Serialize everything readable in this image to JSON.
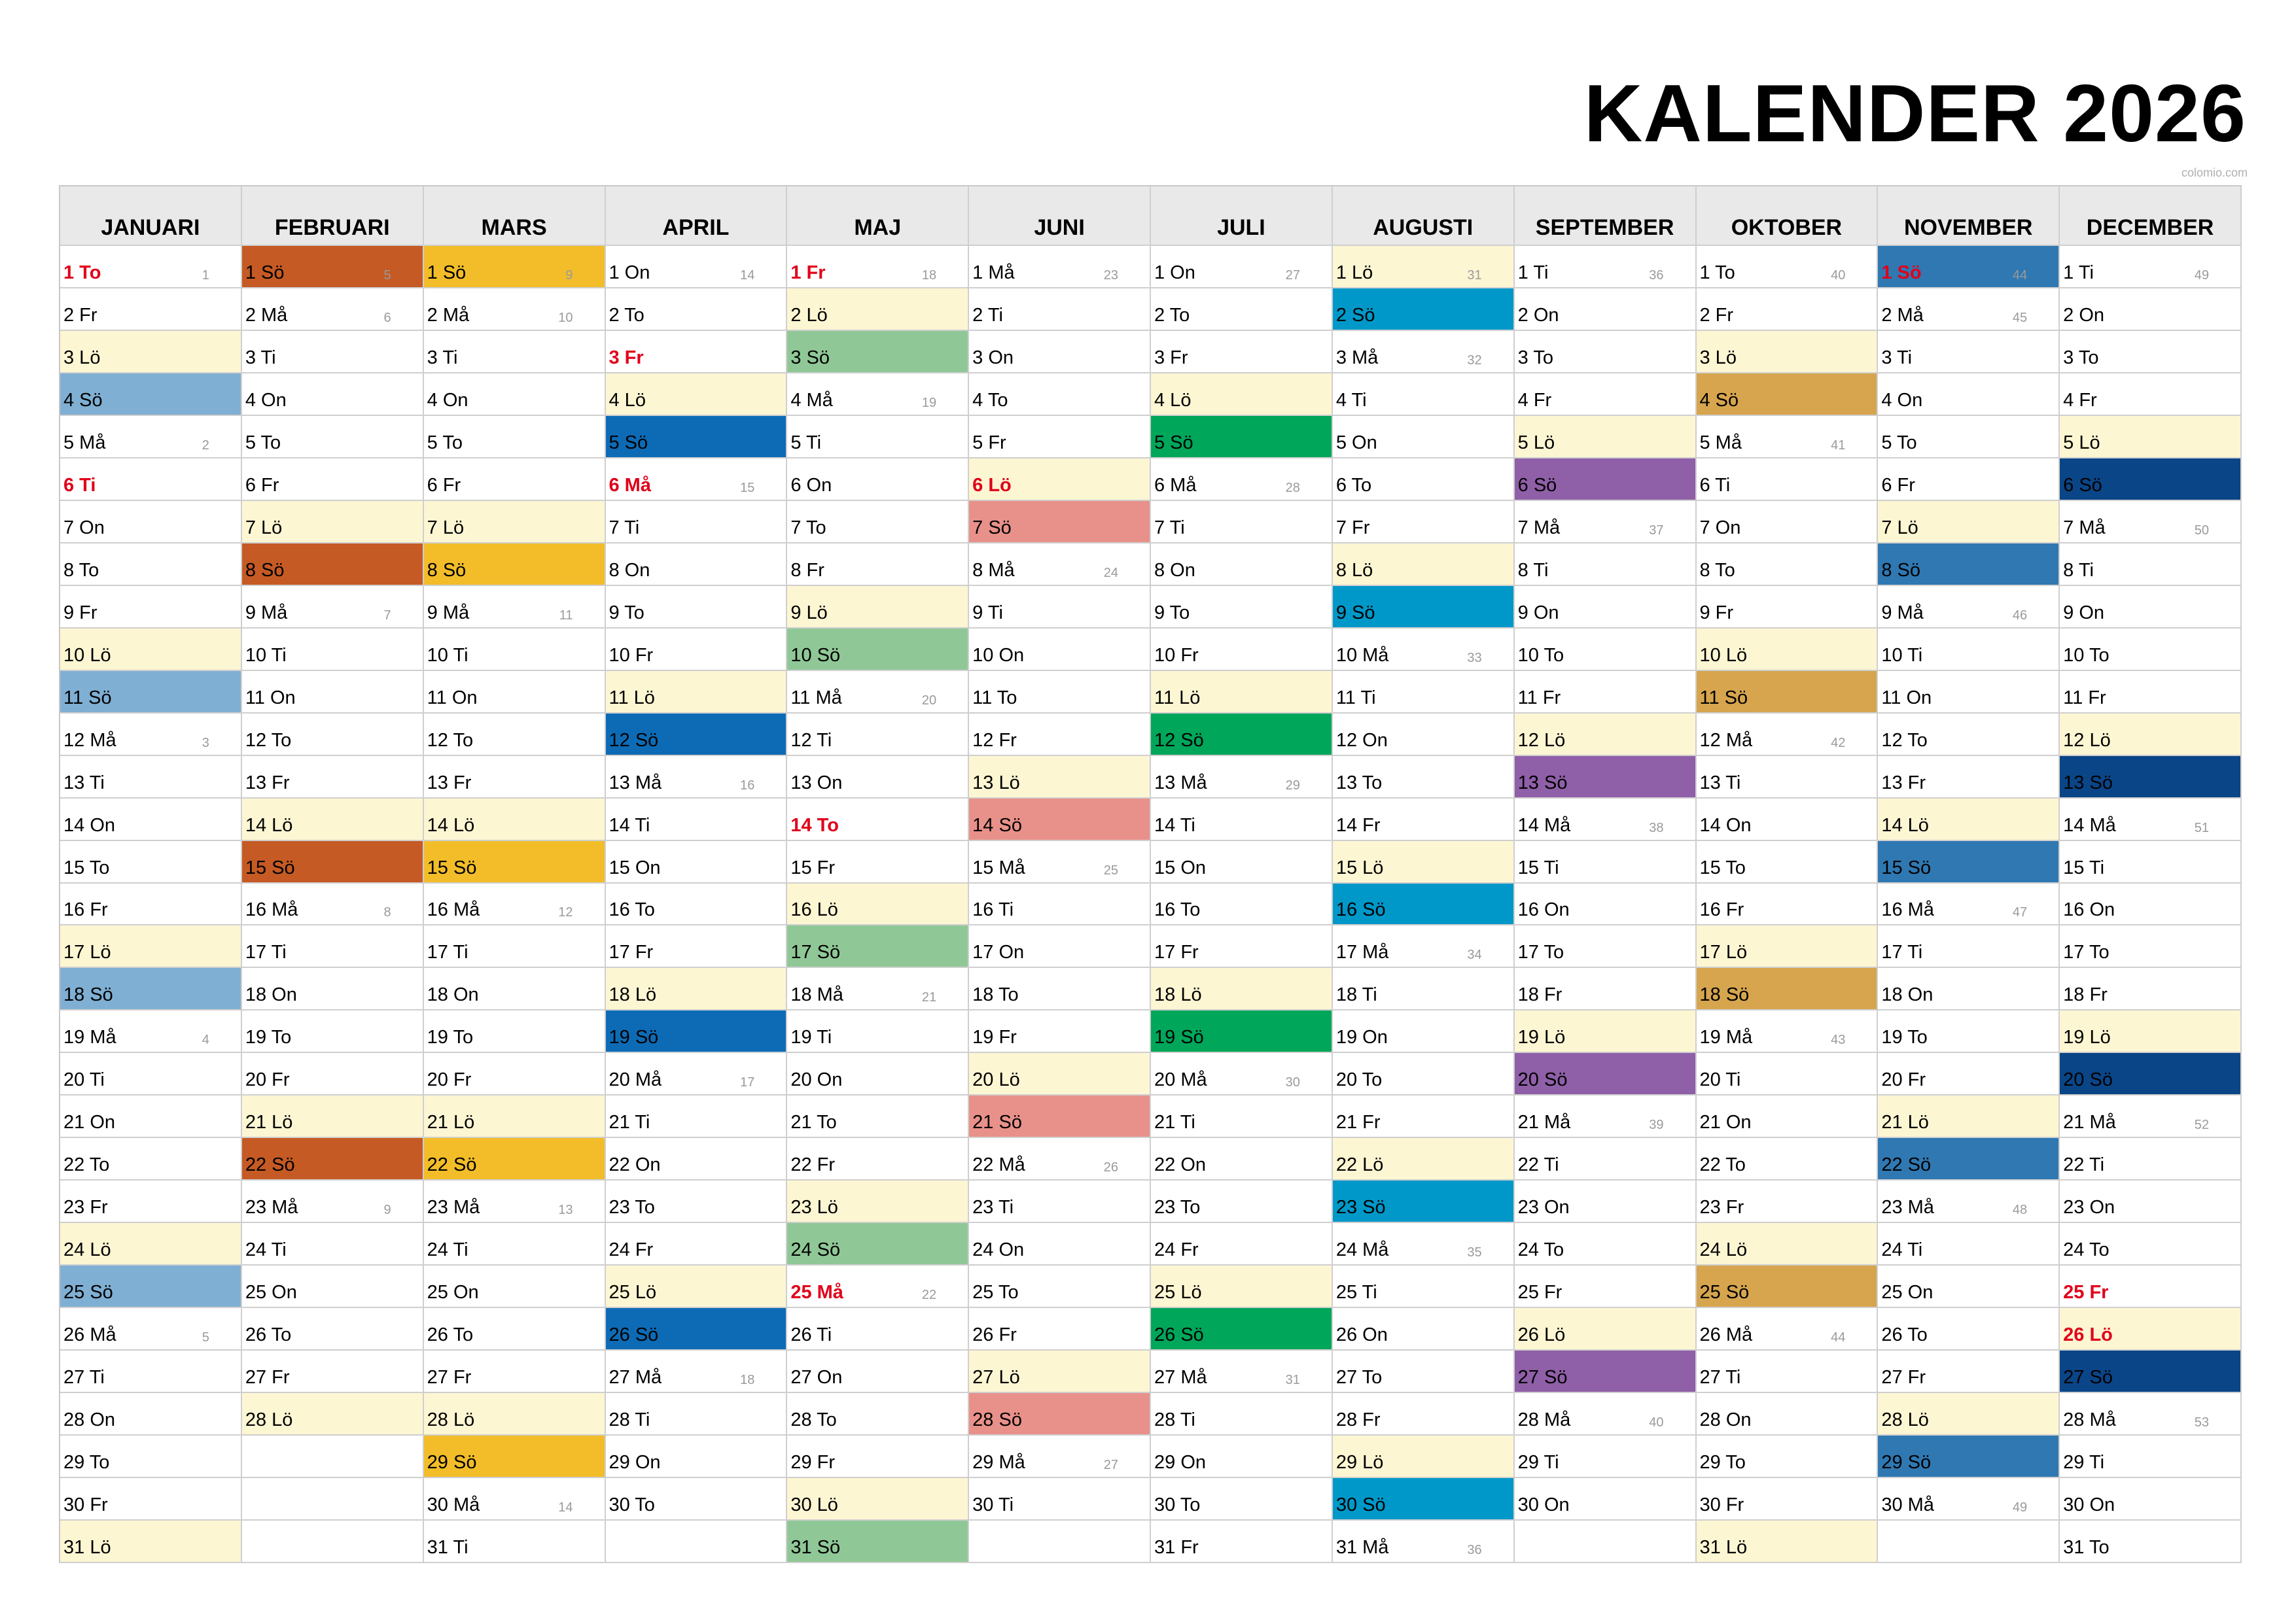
{
  "title": "KALENDER 2026",
  "credit": "colomio.com",
  "colors": {
    "saturday": "#fdf6d3",
    "holiday_text": "#e0001a",
    "sunday_by_month": [
      "#7fafd3",
      "#c55a24",
      "#f2bd29",
      "#0d6bb6",
      "#8fc896",
      "#e8918a",
      "#00a65a",
      "#0098c9",
      "#8f5fa8",
      "#d6a54e",
      "#2f78b2",
      "#0a4587"
    ]
  },
  "months": [
    "JANUARI",
    "FEBRUARI",
    "MARS",
    "APRIL",
    "MAJ",
    "JUNI",
    "JULI",
    "AUGUSTI",
    "SEPTEMBER",
    "OKTOBER",
    "NOVEMBER",
    "DECEMBER"
  ],
  "calendar": [
    {
      "days": [
        "1 To",
        "2 Fr",
        "3 Lö",
        "4 Sö",
        "5 Må",
        "6 Ti",
        "7 On",
        "8 To",
        "9 Fr",
        "10 Lö",
        "11 Sö",
        "12 Må",
        "13 Ti",
        "14 On",
        "15 To",
        "16 Fr",
        "17 Lö",
        "18 Sö",
        "19 Må",
        "20 Ti",
        "21 On",
        "22 To",
        "23 Fr",
        "24 Lö",
        "25 Sö",
        "26 Må",
        "27 Ti",
        "28 On",
        "29 To",
        "30 Fr",
        "31 Lö"
      ],
      "weeks": {
        "1": "1",
        "5": "2",
        "12": "3",
        "19": "4",
        "26": "5"
      },
      "holidays": [
        1,
        6
      ]
    },
    {
      "days": [
        "1 Sö",
        "2 Må",
        "3 Ti",
        "4 On",
        "5 To",
        "6 Fr",
        "7 Lö",
        "8 Sö",
        "9 Må",
        "10 Ti",
        "11 On",
        "12 To",
        "13 Fr",
        "14 Lö",
        "15 Sö",
        "16 Må",
        "17 Ti",
        "18 On",
        "19 To",
        "20 Fr",
        "21 Lö",
        "22 Sö",
        "23 Må",
        "24 Ti",
        "25 On",
        "26 To",
        "27 Fr",
        "28 Lö"
      ],
      "weeks": {
        "1": "5",
        "2": "6",
        "9": "7",
        "16": "8",
        "23": "9"
      },
      "holidays": []
    },
    {
      "days": [
        "1 Sö",
        "2 Må",
        "3 Ti",
        "4 On",
        "5 To",
        "6 Fr",
        "7 Lö",
        "8 Sö",
        "9 Må",
        "10 Ti",
        "11 On",
        "12 To",
        "13 Fr",
        "14 Lö",
        "15 Sö",
        "16 Må",
        "17 Ti",
        "18 On",
        "19 To",
        "20 Fr",
        "21 Lö",
        "22 Sö",
        "23 Må",
        "24 Ti",
        "25 On",
        "26 To",
        "27 Fr",
        "28 Lö",
        "29 Sö",
        "30 Må",
        "31 Ti"
      ],
      "weeks": {
        "1": "9",
        "2": "10",
        "9": "11",
        "16": "12",
        "23": "13",
        "30": "14"
      },
      "holidays": []
    },
    {
      "days": [
        "1 On",
        "2 To",
        "3 Fr",
        "4 Lö",
        "5 Sö",
        "6 Må",
        "7 Ti",
        "8 On",
        "9 To",
        "10 Fr",
        "11 Lö",
        "12 Sö",
        "13 Må",
        "14 Ti",
        "15 On",
        "16 To",
        "17 Fr",
        "18 Lö",
        "19 Sö",
        "20 Må",
        "21 Ti",
        "22 On",
        "23 To",
        "24 Fr",
        "25 Lö",
        "26 Sö",
        "27 Må",
        "28 Ti",
        "29 On",
        "30 To"
      ],
      "weeks": {
        "1": "14",
        "6": "15",
        "13": "16",
        "20": "17",
        "27": "18"
      },
      "holidays": [
        3,
        6
      ]
    },
    {
      "days": [
        "1 Fr",
        "2 Lö",
        "3 Sö",
        "4 Må",
        "5 Ti",
        "6 On",
        "7 To",
        "8 Fr",
        "9 Lö",
        "10 Sö",
        "11 Må",
        "12 Ti",
        "13 On",
        "14 To",
        "15 Fr",
        "16 Lö",
        "17 Sö",
        "18 Må",
        "19 Ti",
        "20 On",
        "21 To",
        "22 Fr",
        "23 Lö",
        "24 Sö",
        "25 Må",
        "26 Ti",
        "27 On",
        "28 To",
        "29 Fr",
        "30 Lö",
        "31 Sö"
      ],
      "weeks": {
        "1": "18",
        "4": "19",
        "11": "20",
        "18": "21",
        "25": "22"
      },
      "holidays": [
        1,
        14,
        25
      ]
    },
    {
      "days": [
        "1 Må",
        "2 Ti",
        "3 On",
        "4 To",
        "5 Fr",
        "6 Lö",
        "7 Sö",
        "8 Må",
        "9 Ti",
        "10 On",
        "11 To",
        "12 Fr",
        "13 Lö",
        "14 Sö",
        "15 Må",
        "16 Ti",
        "17 On",
        "18 To",
        "19 Fr",
        "20 Lö",
        "21 Sö",
        "22 Må",
        "23 Ti",
        "24 On",
        "25 To",
        "26 Fr",
        "27 Lö",
        "28 Sö",
        "29 Må",
        "30 Ti"
      ],
      "weeks": {
        "1": "23",
        "8": "24",
        "15": "25",
        "22": "26",
        "29": "27"
      },
      "holidays": [
        6
      ]
    },
    {
      "days": [
        "1 On",
        "2 To",
        "3 Fr",
        "4 Lö",
        "5 Sö",
        "6 Må",
        "7 Ti",
        "8 On",
        "9 To",
        "10 Fr",
        "11 Lö",
        "12 Sö",
        "13 Må",
        "14 Ti",
        "15 On",
        "16 To",
        "17 Fr",
        "18 Lö",
        "19 Sö",
        "20 Må",
        "21 Ti",
        "22 On",
        "23 To",
        "24 Fr",
        "25 Lö",
        "26 Sö",
        "27 Må",
        "28 Ti",
        "29 On",
        "30 To",
        "31 Fr"
      ],
      "weeks": {
        "1": "27",
        "6": "28",
        "13": "29",
        "20": "30",
        "27": "31"
      },
      "holidays": []
    },
    {
      "days": [
        "1 Lö",
        "2 Sö",
        "3 Må",
        "4 Ti",
        "5 On",
        "6 To",
        "7 Fr",
        "8 Lö",
        "9 Sö",
        "10 Må",
        "11 Ti",
        "12 On",
        "13 To",
        "14 Fr",
        "15 Lö",
        "16 Sö",
        "17 Må",
        "18 Ti",
        "19 On",
        "20 To",
        "21 Fr",
        "22 Lö",
        "23 Sö",
        "24 Må",
        "25 Ti",
        "26 On",
        "27 To",
        "28 Fr",
        "29 Lö",
        "30 Sö",
        "31 Må"
      ],
      "weeks": {
        "1": "31",
        "3": "32",
        "10": "33",
        "17": "34",
        "24": "35",
        "31": "36"
      },
      "holidays": []
    },
    {
      "days": [
        "1 Ti",
        "2 On",
        "3 To",
        "4 Fr",
        "5 Lö",
        "6 Sö",
        "7 Må",
        "8 Ti",
        "9 On",
        "10 To",
        "11 Fr",
        "12 Lö",
        "13 Sö",
        "14 Må",
        "15 Ti",
        "16 On",
        "17 To",
        "18 Fr",
        "19 Lö",
        "20 Sö",
        "21 Må",
        "22 Ti",
        "23 On",
        "24 To",
        "25 Fr",
        "26 Lö",
        "27 Sö",
        "28 Må",
        "29 Ti",
        "30 On"
      ],
      "weeks": {
        "1": "36",
        "7": "37",
        "14": "38",
        "21": "39",
        "28": "40"
      },
      "holidays": []
    },
    {
      "days": [
        "1 To",
        "2 Fr",
        "3 Lö",
        "4 Sö",
        "5 Må",
        "6 Ti",
        "7 On",
        "8 To",
        "9 Fr",
        "10 Lö",
        "11 Sö",
        "12 Må",
        "13 Ti",
        "14 On",
        "15 To",
        "16 Fr",
        "17 Lö",
        "18 Sö",
        "19 Må",
        "20 Ti",
        "21 On",
        "22 To",
        "23 Fr",
        "24 Lö",
        "25 Sö",
        "26 Må",
        "27 Ti",
        "28 On",
        "29 To",
        "30 Fr",
        "31 Lö"
      ],
      "weeks": {
        "1": "40",
        "5": "41",
        "12": "42",
        "19": "43",
        "26": "44"
      },
      "holidays": []
    },
    {
      "days": [
        "1 Sö",
        "2 Må",
        "3 Ti",
        "4 On",
        "5 To",
        "6 Fr",
        "7 Lö",
        "8 Sö",
        "9 Må",
        "10 Ti",
        "11 On",
        "12 To",
        "13 Fr",
        "14 Lö",
        "15 Sö",
        "16 Må",
        "17 Ti",
        "18 On",
        "19 To",
        "20 Fr",
        "21 Lö",
        "22 Sö",
        "23 Må",
        "24 Ti",
        "25 On",
        "26 To",
        "27 Fr",
        "28 Lö",
        "29 Sö",
        "30 Må"
      ],
      "weeks": {
        "1": "44",
        "2": "45",
        "9": "46",
        "16": "47",
        "23": "48",
        "30": "49"
      },
      "holidays": [
        1
      ]
    },
    {
      "days": [
        "1 Ti",
        "2 On",
        "3 To",
        "4 Fr",
        "5 Lö",
        "6 Sö",
        "7 Må",
        "8 Ti",
        "9 On",
        "10 To",
        "11 Fr",
        "12 Lö",
        "13 Sö",
        "14 Må",
        "15 Ti",
        "16 On",
        "17 To",
        "18 Fr",
        "19 Lö",
        "20 Sö",
        "21 Må",
        "22 Ti",
        "23 On",
        "24 To",
        "25 Fr",
        "26 Lö",
        "27 Sö",
        "28 Må",
        "29 Ti",
        "30 On",
        "31 To"
      ],
      "weeks": {
        "1": "49",
        "7": "50",
        "14": "51",
        "21": "52",
        "28": "53"
      },
      "holidays": [
        25,
        26
      ]
    }
  ]
}
